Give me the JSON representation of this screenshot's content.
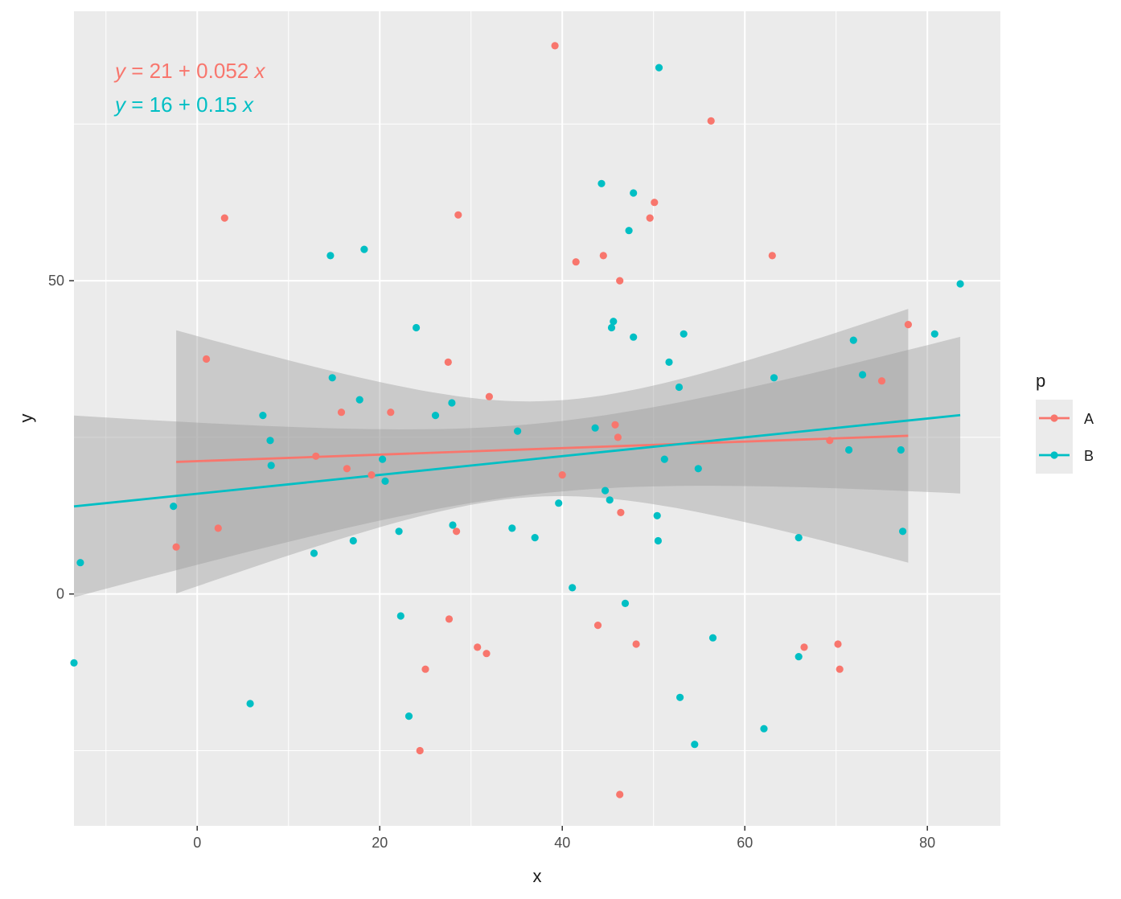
{
  "chart_data": {
    "type": "scatter",
    "xlabel": "x",
    "ylabel": "y",
    "xlim": [
      -13.5,
      88
    ],
    "ylim": [
      -37,
      93
    ],
    "x_ticks": [
      0,
      20,
      40,
      60,
      80
    ],
    "y_ticks": [
      0,
      50
    ],
    "x_tick_labels": [
      "0",
      "20",
      "40",
      "60",
      "80"
    ],
    "y_tick_labels": [
      "0",
      "50"
    ],
    "legend": {
      "title": "p",
      "position": "right",
      "entries": [
        "A",
        "B"
      ]
    },
    "equations": [
      {
        "series": "A",
        "lhs": "y",
        "rhs": "= 21 + 0.052",
        "var": "x"
      },
      {
        "series": "B",
        "lhs": "y",
        "rhs": "= 16 + 0.15",
        "var": "x"
      }
    ],
    "series": [
      {
        "name": "A",
        "color": "#F8766D",
        "fit": {
          "intercept": 21.2,
          "slope": 0.052,
          "x_range": [
            -2.3,
            77.9
          ]
        },
        "ribbon": {
          "x_min": -2.3,
          "x_max": 77.9,
          "lower_at_min": 0,
          "upper_at_min": 42,
          "lower_at_max": 5,
          "upper_at_max": 45.5,
          "halfwidth_at_center": 7.6,
          "x_center": 38
        },
        "points": [
          [
            3,
            60
          ],
          [
            39.2,
            87.5
          ],
          [
            56.3,
            75.5
          ],
          [
            50.1,
            62.5
          ],
          [
            49.6,
            60
          ],
          [
            28.6,
            60.5
          ],
          [
            41.5,
            53
          ],
          [
            44.5,
            54
          ],
          [
            63,
            54
          ],
          [
            46.3,
            50
          ],
          [
            77.9,
            43
          ],
          [
            1,
            37.5
          ],
          [
            27.5,
            37
          ],
          [
            32,
            31.5
          ],
          [
            75,
            34
          ],
          [
            15.8,
            29
          ],
          [
            21.2,
            29
          ],
          [
            45.8,
            27
          ],
          [
            46.1,
            25
          ],
          [
            69.3,
            24.5
          ],
          [
            13,
            22
          ],
          [
            16.4,
            20
          ],
          [
            19.1,
            19
          ],
          [
            40,
            19
          ],
          [
            46.4,
            13
          ],
          [
            2.3,
            10.5
          ],
          [
            28.4,
            10
          ],
          [
            -2.3,
            7.5
          ],
          [
            27.6,
            -4
          ],
          [
            43.9,
            -5
          ],
          [
            30.7,
            -8.5
          ],
          [
            31.7,
            -9.5
          ],
          [
            48.1,
            -8
          ],
          [
            66.5,
            -8.5
          ],
          [
            70.2,
            -8
          ],
          [
            70.4,
            -12
          ],
          [
            25,
            -12
          ],
          [
            24.4,
            -25
          ],
          [
            46.3,
            -32
          ]
        ]
      },
      {
        "name": "B",
        "color": "#00BFC4",
        "fit": {
          "intercept": 16,
          "slope": 0.15,
          "x_range": [
            -13.5,
            83.6
          ]
        },
        "ribbon": {
          "x_min": -13.5,
          "x_max": 83.6,
          "lower_at_min": -1,
          "upper_at_min": 28,
          "lower_at_max": 16,
          "upper_at_max": 41,
          "halfwidth_at_center": 5.6,
          "x_center": 38
        },
        "points": [
          [
            50.6,
            84
          ],
          [
            44.3,
            65.5
          ],
          [
            47.8,
            64
          ],
          [
            47.3,
            58
          ],
          [
            14.6,
            54
          ],
          [
            18.3,
            55
          ],
          [
            83.6,
            49.5
          ],
          [
            24,
            42.5
          ],
          [
            45.4,
            42.5
          ],
          [
            45.6,
            43.5
          ],
          [
            47.8,
            41
          ],
          [
            53.3,
            41.5
          ],
          [
            71.9,
            40.5
          ],
          [
            80.8,
            41.5
          ],
          [
            51.7,
            37
          ],
          [
            14.8,
            34.5
          ],
          [
            63.2,
            34.5
          ],
          [
            72.9,
            35
          ],
          [
            17.8,
            31
          ],
          [
            52.8,
            33
          ],
          [
            7.2,
            28.5
          ],
          [
            26.1,
            28.5
          ],
          [
            27.9,
            30.5
          ],
          [
            35.1,
            26
          ],
          [
            43.6,
            26.5
          ],
          [
            8,
            24.5
          ],
          [
            8.1,
            20.5
          ],
          [
            20.3,
            21.5
          ],
          [
            51.2,
            21.5
          ],
          [
            54.9,
            20
          ],
          [
            71.4,
            23
          ],
          [
            77.1,
            23
          ],
          [
            20.6,
            18
          ],
          [
            44.7,
            16.5
          ],
          [
            45.2,
            15
          ],
          [
            39.6,
            14.5
          ],
          [
            50.4,
            12.5
          ],
          [
            -2.6,
            14
          ],
          [
            28,
            11
          ],
          [
            34.5,
            10.5
          ],
          [
            22.1,
            10
          ],
          [
            37,
            9
          ],
          [
            65.9,
            9
          ],
          [
            77.3,
            10
          ],
          [
            50.5,
            8.5
          ],
          [
            17.1,
            8.5
          ],
          [
            12.8,
            6.5
          ],
          [
            -12.8,
            5
          ],
          [
            41.1,
            1
          ],
          [
            46.9,
            -1.5
          ],
          [
            22.3,
            -3.5
          ],
          [
            56.5,
            -7
          ],
          [
            65.9,
            -10
          ],
          [
            -13.5,
            -11
          ],
          [
            5.8,
            -17.5
          ],
          [
            52.9,
            -16.5
          ],
          [
            23.2,
            -19.5
          ],
          [
            62.1,
            -21.5
          ],
          [
            54.5,
            -24
          ]
        ]
      }
    ]
  }
}
